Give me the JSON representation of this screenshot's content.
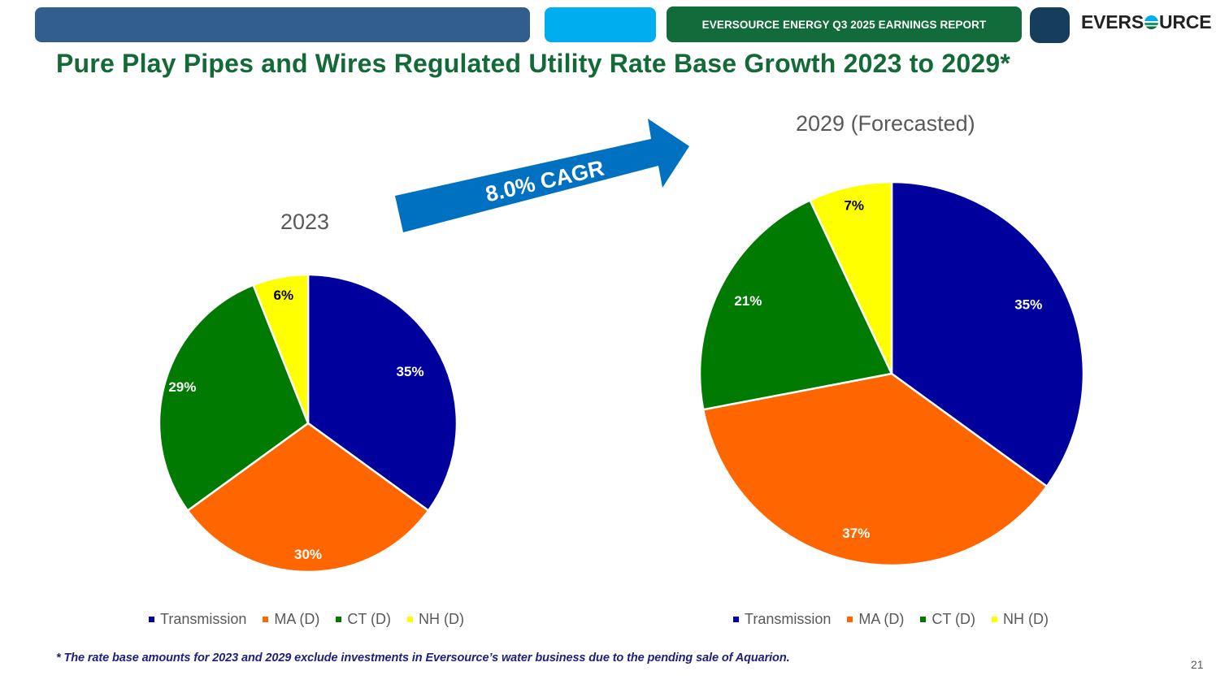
{
  "header": {
    "report_label": "EVERSOURCE ENERGY Q3 2025 EARNINGS REPORT",
    "logo_text_before": "EVERS",
    "logo_text_after": "URCE"
  },
  "slide": {
    "title": "Pure Play Pipes and Wires Regulated Utility Rate Base Growth 2023 to 2029*",
    "arrow_label": "8.0% CAGR",
    "footnote": "* The rate base amounts for 2023 and 2029 exclude investments in Eversource’s water business due to the pending sale of Aquarion.",
    "page_number": "21"
  },
  "colors": {
    "Transmission": "#00009c",
    "MA (D)": "#ff6600",
    "CT (D)": "#007a00",
    "NH (D)": "#ffff00",
    "title_green": "#126a37",
    "arrow_blue": "#0070c0"
  },
  "chart_data": [
    {
      "type": "pie",
      "title": "2023",
      "categories": [
        "Transmission",
        "MA (D)",
        "CT (D)",
        "NH (D)"
      ],
      "values": [
        35,
        30,
        29,
        6
      ],
      "labels": [
        "35%",
        "30%",
        "29%",
        "6%"
      ],
      "start_angle": "12 o'clock, clockwise",
      "legend_position": "bottom"
    },
    {
      "type": "pie",
      "title": "2029 (Forecasted)",
      "categories": [
        "Transmission",
        "MA (D)",
        "CT (D)",
        "NH (D)"
      ],
      "values": [
        35,
        37,
        21,
        7
      ],
      "labels": [
        "35%",
        "37%",
        "21%",
        "7%"
      ],
      "start_angle": "12 o'clock, clockwise",
      "legend_position": "bottom"
    }
  ]
}
